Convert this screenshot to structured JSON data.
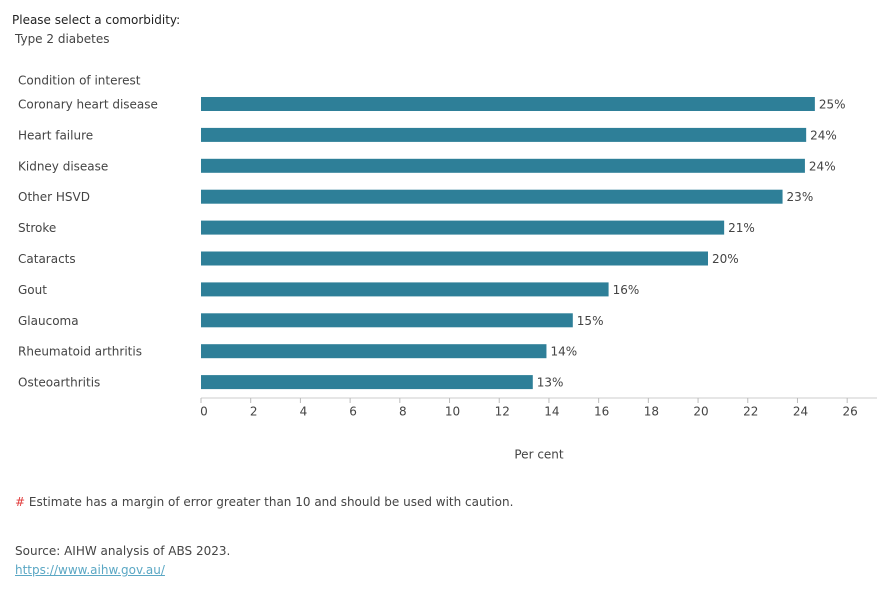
{
  "filter": {
    "label": "Please select a comorbidity:",
    "value": "Type 2 diabetes"
  },
  "chart_data": {
    "type": "bar",
    "orientation": "horizontal",
    "y_label": "Condition of interest",
    "x_label": "Per cent",
    "categories": [
      "Coronary heart disease",
      "Heart failure",
      "Kidney disease",
      "Other HSVD",
      "Stroke",
      "Cataracts",
      "Gout",
      "Glaucoma",
      "Rheumatoid arthritis",
      "Osteoarthritis"
    ],
    "values": [
      24.7,
      24.35,
      24.3,
      23.4,
      21.05,
      20.4,
      16.4,
      14.96,
      13.9,
      13.35
    ],
    "value_labels": [
      "25%",
      "24%",
      "24%",
      "23%",
      "21%",
      "20%",
      "16%",
      "15%",
      "14%",
      "13%"
    ],
    "color": "#2e7f98",
    "xlim": [
      0,
      27.2
    ],
    "xticks": [
      0,
      2,
      4,
      6,
      8,
      10,
      12,
      14,
      16,
      18,
      20,
      22,
      24,
      26
    ],
    "grid": false
  },
  "footnote": {
    "symbol": "#",
    "text": "Estimate has a margin of error greater than 10 and should be used with caution."
  },
  "source": {
    "text": "Source: AIHW analysis of ABS 2023.",
    "link": "https://www.aihw.gov.au/"
  }
}
